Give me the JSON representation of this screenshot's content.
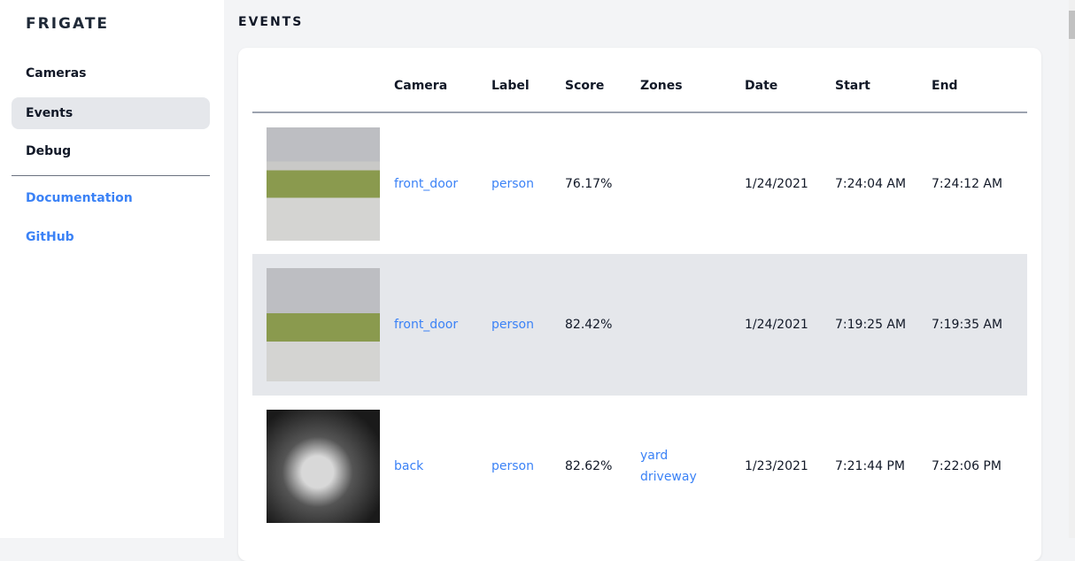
{
  "sidebar": {
    "brand": "FRIGATE",
    "items": [
      {
        "label": "Cameras"
      },
      {
        "label": "Events",
        "active": true
      },
      {
        "label": "Debug"
      }
    ],
    "links": [
      {
        "label": "Documentation"
      },
      {
        "label": "GitHub"
      }
    ]
  },
  "main": {
    "title": "EVENTS",
    "columns": [
      "",
      "Camera",
      "Label",
      "Score",
      "Zones",
      "Date",
      "Start",
      "End"
    ],
    "rows": [
      {
        "camera": "front_door",
        "label": "person",
        "score": "76.17%",
        "zones": [
          "",
          ""
        ],
        "date": "1/24/2021",
        "start": "7:24:04 AM",
        "end": "7:24:12 AM"
      },
      {
        "camera": "front_door",
        "label": "person",
        "score": "82.42%",
        "zones": [
          "",
          ""
        ],
        "date": "1/24/2021",
        "start": "7:19:25 AM",
        "end": "7:19:35 AM"
      },
      {
        "camera": "back",
        "label": "person",
        "score": "82.62%",
        "zones": [
          "yard",
          "driveway"
        ],
        "date": "1/23/2021",
        "start": "7:21:44 PM",
        "end": "7:22:06 PM"
      }
    ]
  },
  "colors": {
    "link": "#3b82f6",
    "active_bg": "#e5e7eb"
  }
}
